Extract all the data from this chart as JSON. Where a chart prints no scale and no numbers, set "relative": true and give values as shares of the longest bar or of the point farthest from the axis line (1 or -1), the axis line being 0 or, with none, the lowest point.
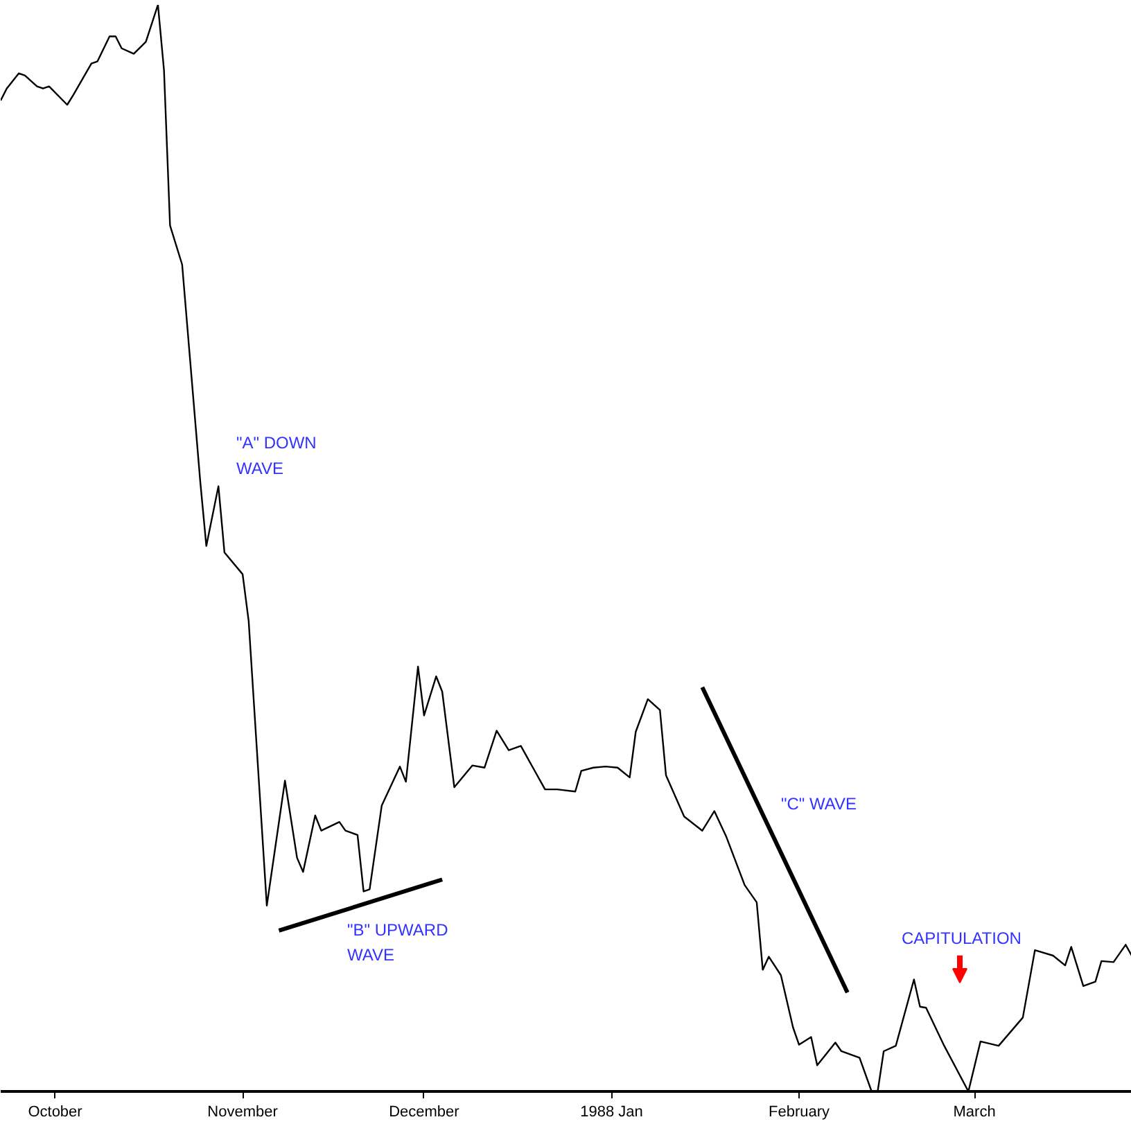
{
  "chart_data": {
    "type": "line",
    "relative": true,
    "grid": false,
    "marker": "none",
    "line_style": "solid",
    "xlim": [
      "1987-09-22",
      "1988-03-27"
    ],
    "xticks": [
      {
        "value": "1987-10-01",
        "label": "October"
      },
      {
        "value": "1987-11-01",
        "label": "November"
      },
      {
        "value": "1987-12-01",
        "label": "December"
      },
      {
        "value": "1988-01-01",
        "label": "1988 Jan"
      },
      {
        "value": "1988-02-01",
        "label": "February"
      },
      {
        "value": "1988-03-01",
        "label": "March"
      }
    ],
    "series": [
      {
        "color": "#000000",
        "x": [
          "1987-09-22",
          "1987-09-23",
          "1987-09-25",
          "1987-09-26",
          "1987-09-28",
          "1987-09-29",
          "1987-09-30",
          "1987-10-03",
          "1987-10-04",
          "1987-10-07",
          "1987-10-08",
          "1987-10-10",
          "1987-10-11",
          "1987-10-12",
          "1987-10-14",
          "1987-10-16",
          "1987-10-18",
          "1987-10-19",
          "1987-10-20",
          "1987-10-22",
          "1987-10-25",
          "1987-10-26",
          "1987-10-28",
          "1987-10-29",
          "1987-11-01",
          "1987-11-02",
          "1987-11-05",
          "1987-11-08",
          "1987-11-10",
          "1987-11-11",
          "1987-11-13",
          "1987-11-14",
          "1987-11-17",
          "1987-11-18",
          "1987-11-20",
          "1987-11-21",
          "1987-11-22",
          "1987-11-24",
          "1987-11-27",
          "1987-11-28",
          "1987-11-30",
          "1987-12-01",
          "1987-12-03",
          "1987-12-04",
          "1987-12-06",
          "1987-12-09",
          "1987-12-11",
          "1987-12-13",
          "1987-12-15",
          "1987-12-17",
          "1987-12-19",
          "1987-12-21",
          "1987-12-23",
          "1987-12-26",
          "1987-12-27",
          "1987-12-29",
          "1987-12-31",
          "1988-01-02",
          "1988-01-04",
          "1988-01-05",
          "1988-01-07",
          "1988-01-09",
          "1988-01-10",
          "1988-01-13",
          "1988-01-16",
          "1988-01-18",
          "1988-01-20",
          "1988-01-23",
          "1988-01-25",
          "1988-01-26",
          "1988-01-27",
          "1988-01-29",
          "1988-01-31",
          "1988-02-01",
          "1988-02-03",
          "1988-02-04",
          "1988-02-07",
          "1988-02-08",
          "1988-02-11",
          "1988-02-13",
          "1988-02-14",
          "1988-02-15",
          "1988-02-17",
          "1988-02-20",
          "1988-02-21",
          "1988-02-22",
          "1988-02-25",
          "1988-02-29",
          "1988-03-02",
          "1988-03-05",
          "1988-03-09",
          "1988-03-11",
          "1988-03-14",
          "1988-03-16",
          "1988-03-17",
          "1988-03-19",
          "1988-03-21",
          "1988-03-22",
          "1988-03-24",
          "1988-03-26",
          "1988-03-27"
        ],
        "values": [
          0.912,
          0.923,
          0.937,
          0.935,
          0.925,
          0.923,
          0.925,
          0.908,
          0.917,
          0.946,
          0.948,
          0.971,
          0.971,
          0.96,
          0.955,
          0.966,
          1.0,
          0.94,
          0.797,
          0.761,
          0.561,
          0.502,
          0.557,
          0.496,
          0.476,
          0.433,
          0.171,
          0.286,
          0.215,
          0.202,
          0.254,
          0.24,
          0.248,
          0.24,
          0.236,
          0.184,
          0.186,
          0.263,
          0.299,
          0.285,
          0.391,
          0.346,
          0.382,
          0.368,
          0.28,
          0.3,
          0.298,
          0.332,
          0.314,
          0.318,
          0.298,
          0.278,
          0.278,
          0.276,
          0.295,
          0.298,
          0.299,
          0.298,
          0.289,
          0.331,
          0.361,
          0.351,
          0.291,
          0.253,
          0.24,
          0.258,
          0.234,
          0.19,
          0.174,
          0.112,
          0.124,
          0.107,
          0.059,
          0.043,
          0.05,
          0.024,
          0.045,
          0.037,
          0.031,
          0.0,
          0.0,
          0.037,
          0.042,
          0.103,
          0.078,
          0.077,
          0.042,
          0.0,
          0.046,
          0.042,
          0.068,
          0.13,
          0.125,
          0.116,
          0.133,
          0.097,
          0.101,
          0.12,
          0.119,
          0.135,
          0.125
        ]
      },
      {
        "color": "#000000",
        "type": "line",
        "x": [
          "1987-11-07",
          "1987-12-04"
        ],
        "values": [
          0.148,
          0.195
        ]
      },
      {
        "color": "#000000",
        "type": "line",
        "x": [
          "1988-01-16",
          "1988-02-09"
        ],
        "values": [
          0.372,
          0.091
        ]
      }
    ],
    "annotations": [
      "\"A\" DOWN\nWAVE",
      "\"B\" UPWARD\nWAVE",
      "\"C\" WAVE",
      "CAPITULATION"
    ]
  }
}
